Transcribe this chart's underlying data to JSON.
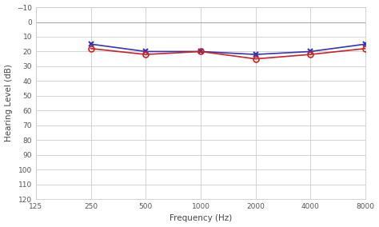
{
  "freqs": [
    250,
    500,
    1000,
    2000,
    4000,
    8000
  ],
  "blue_values": [
    15,
    20,
    20,
    22,
    20,
    15
  ],
  "red_values": [
    18,
    22,
    20,
    25,
    22,
    18
  ],
  "blue_color": "#3333bb",
  "red_color": "#cc2222",
  "bg_color": "#ffffff",
  "plot_bg_color": "#ffffff",
  "grid_color": "#cccccc",
  "zero_line_color": "#aaaaaa",
  "ylabel": "Hearing Level (dB)",
  "xlabel": "Frequency (Hz)",
  "yticks": [
    -10,
    0,
    10,
    20,
    30,
    40,
    50,
    60,
    70,
    80,
    90,
    100,
    110,
    120
  ],
  "xticks": [
    125,
    250,
    500,
    1000,
    2000,
    4000,
    8000
  ],
  "xlim": [
    125,
    8000
  ],
  "ylim_bottom": 120,
  "ylim_top": -10,
  "line_width": 1.2,
  "marker_size": 5,
  "tick_fontsize": 6.5,
  "label_fontsize": 7.5
}
